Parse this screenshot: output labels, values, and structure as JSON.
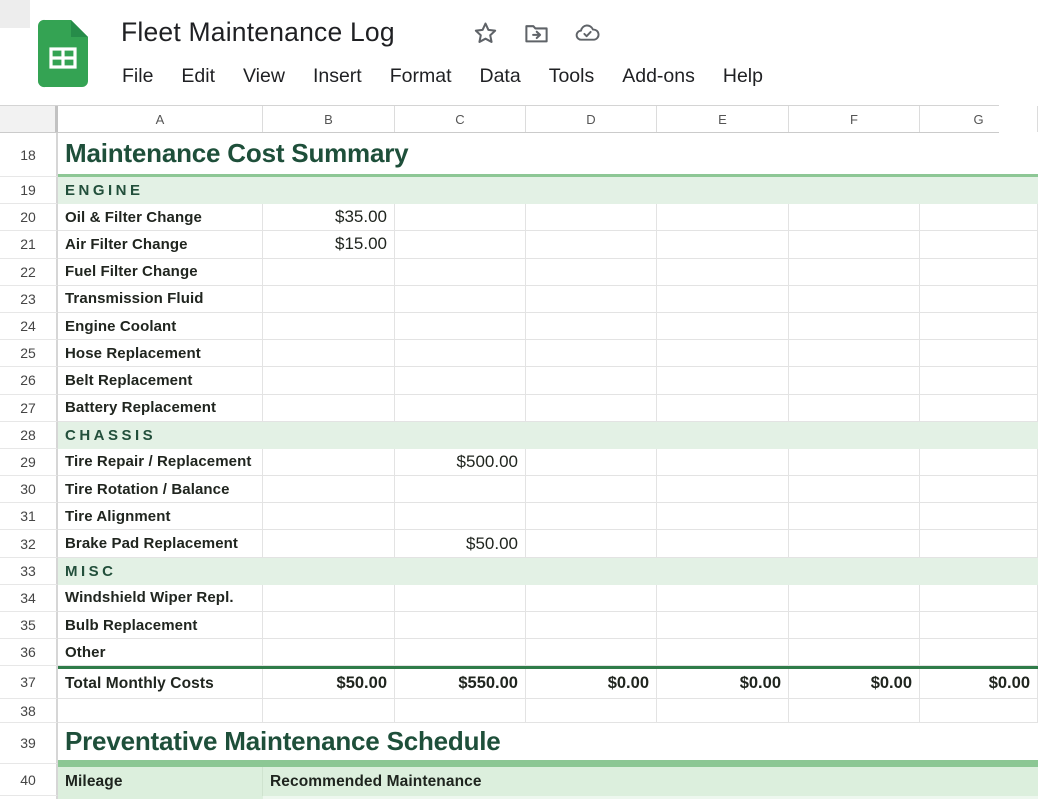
{
  "header": {
    "title": "Fleet Maintenance Log",
    "icons": {
      "star": "star-icon",
      "move": "move-to-folder-icon",
      "saved": "cloud-saved-icon"
    }
  },
  "menubar": {
    "items": [
      "File",
      "Edit",
      "View",
      "Insert",
      "Format",
      "Data",
      "Tools",
      "Add-ons",
      "Help"
    ]
  },
  "sheet": {
    "column_headers": [
      "A",
      "B",
      "C",
      "D",
      "E",
      "F",
      "G"
    ],
    "rows": [
      {
        "num": "18",
        "type": "title",
        "cells": {
          "A": "Maintenance Cost Summary"
        }
      },
      {
        "num": "19",
        "type": "section",
        "cells": {
          "A": "ENGINE"
        }
      },
      {
        "num": "20",
        "type": "item",
        "cells": {
          "A": "Oil & Filter Change",
          "B": "$35.00"
        }
      },
      {
        "num": "21",
        "type": "item",
        "cells": {
          "A": "Air Filter Change",
          "B": "$15.00"
        }
      },
      {
        "num": "22",
        "type": "item",
        "cells": {
          "A": "Fuel Filter Change"
        }
      },
      {
        "num": "23",
        "type": "item",
        "cells": {
          "A": "Transmission Fluid"
        }
      },
      {
        "num": "24",
        "type": "item",
        "cells": {
          "A": "Engine Coolant"
        }
      },
      {
        "num": "25",
        "type": "item",
        "cells": {
          "A": "Hose Replacement"
        }
      },
      {
        "num": "26",
        "type": "item",
        "cells": {
          "A": "Belt Replacement"
        }
      },
      {
        "num": "27",
        "type": "item",
        "cells": {
          "A": "Battery Replacement"
        }
      },
      {
        "num": "28",
        "type": "section",
        "cells": {
          "A": "CHASSIS"
        }
      },
      {
        "num": "29",
        "type": "item",
        "cells": {
          "A": "Tire Repair / Replacement",
          "C": "$500.00"
        }
      },
      {
        "num": "30",
        "type": "item",
        "cells": {
          "A": "Tire Rotation / Balance"
        }
      },
      {
        "num": "31",
        "type": "item",
        "cells": {
          "A": "Tire Alignment"
        }
      },
      {
        "num": "32",
        "type": "item",
        "cells": {
          "A": "Brake Pad Replacement",
          "C": "$50.00"
        }
      },
      {
        "num": "33",
        "type": "section",
        "cells": {
          "A": "MISC"
        }
      },
      {
        "num": "34",
        "type": "item",
        "cells": {
          "A": "Windshield Wiper Repl."
        }
      },
      {
        "num": "35",
        "type": "item",
        "cells": {
          "A": "Bulb Replacement"
        }
      },
      {
        "num": "36",
        "type": "item",
        "cells": {
          "A": "Other"
        }
      },
      {
        "num": "37",
        "type": "total",
        "cells": {
          "A": "Total Monthly Costs",
          "B": "$50.00",
          "C": "$550.00",
          "D": "$0.00",
          "E": "$0.00",
          "F": "$0.00",
          "G": "$0.00"
        }
      },
      {
        "num": "38",
        "type": "empty",
        "cells": {}
      },
      {
        "num": "39",
        "type": "title2",
        "cells": {
          "A": "Preventative Maintenance Schedule"
        }
      },
      {
        "num": "40",
        "type": "subheader",
        "cells": {
          "A": "Mileage",
          "B": "Recommended Maintenance"
        }
      }
    ]
  },
  "colors": {
    "title_green": "#1e4f3a",
    "section_bg": "#e3f1e5",
    "subheader_bg": "#dcefdd",
    "border_green_light": "#8cc794",
    "border_green_dark": "#2f7c49",
    "logo_green": "#34a353",
    "logo_fold_green": "#268c49",
    "icon_gray": "#5f6368"
  }
}
